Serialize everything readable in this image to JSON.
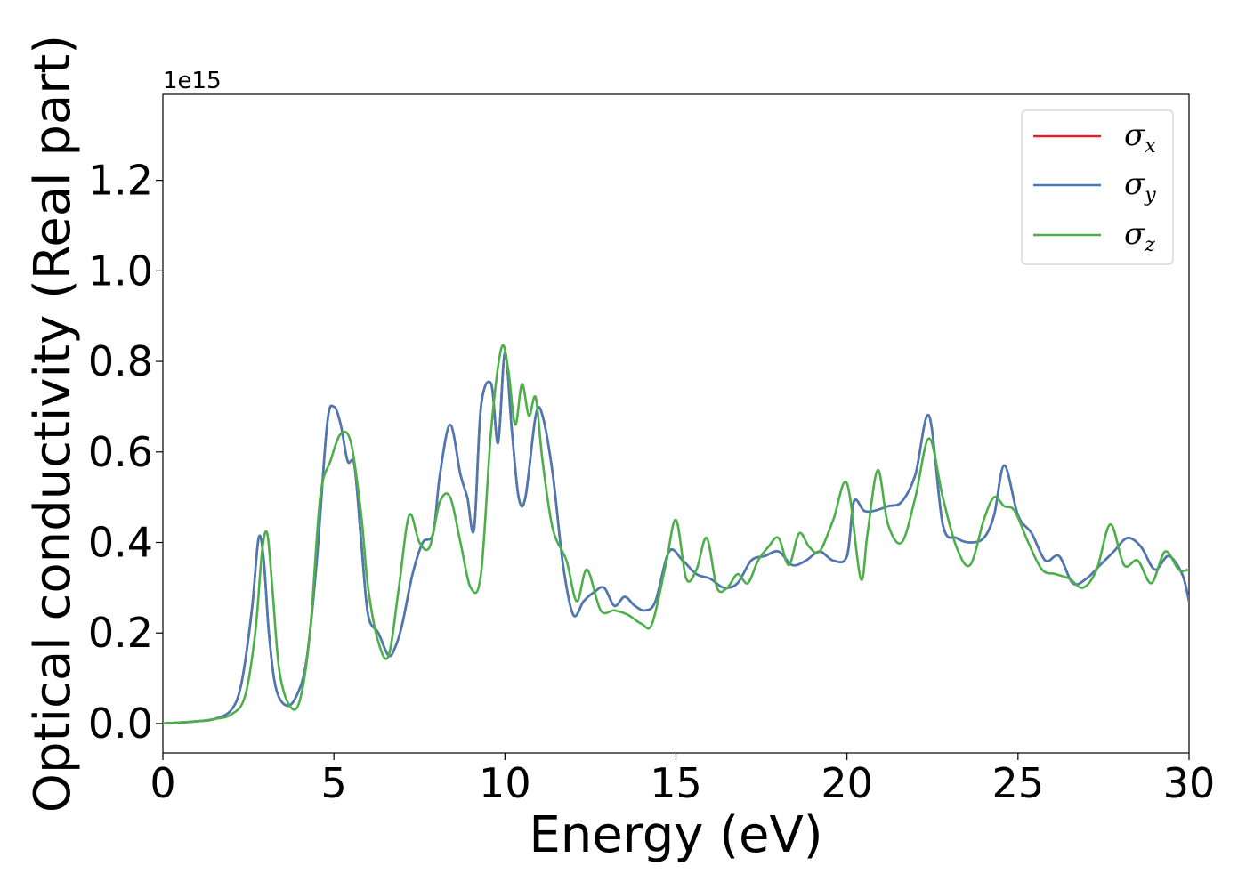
{
  "chart_data": {
    "type": "line",
    "title": "",
    "xlabel": "Energy (eV)",
    "ylabel": "Optical conductivity (Real part)",
    "y_offset_label": "1e15",
    "xlim": [
      0,
      30
    ],
    "ylim": [
      -0.065,
      1.39
    ],
    "x_ticks": [
      0,
      5,
      10,
      15,
      20,
      25,
      30
    ],
    "x_tick_labels": [
      "0",
      "5",
      "10",
      "15",
      "20",
      "25",
      "30"
    ],
    "y_ticks": [
      0.0,
      0.2,
      0.4,
      0.6,
      0.8,
      1.0,
      1.2
    ],
    "y_tick_labels": [
      "0.0",
      "0.2",
      "0.4",
      "0.6",
      "0.8",
      "1.0",
      "1.2"
    ],
    "grid": false,
    "legend_position": "top-right",
    "legend": [
      {
        "symbol": "σ",
        "subscript": "x",
        "color": "#d62728"
      },
      {
        "symbol": "σ",
        "subscript": "y",
        "color": "#4a7ab5"
      },
      {
        "symbol": "σ",
        "subscript": "z",
        "color": "#4daf4a"
      }
    ],
    "series": [
      {
        "name": "σx",
        "color": "#d62728",
        "x": [
          0,
          1,
          1.5,
          2,
          2.3,
          2.6,
          2.8,
          2.95,
          3.1,
          3.3,
          3.6,
          3.9,
          4.2,
          4.5,
          4.8,
          5.0,
          5.2,
          5.4,
          5.6,
          5.8,
          6.0,
          6.3,
          6.6,
          6.8,
          7.0,
          7.3,
          7.6,
          7.9,
          8.1,
          8.4,
          8.7,
          8.9,
          9.1,
          9.3,
          9.6,
          9.8,
          10.0,
          10.2,
          10.4,
          10.6,
          10.9,
          11.1,
          11.4,
          11.7,
          12.0,
          12.3,
          12.6,
          12.9,
          13.2,
          13.5,
          13.8,
          14.1,
          14.4,
          14.8,
          15.2,
          15.6,
          16.0,
          16.4,
          16.8,
          17.2,
          17.6,
          18.0,
          18.4,
          18.8,
          19.2,
          19.6,
          20.0,
          20.2,
          20.5,
          20.8,
          21.2,
          21.6,
          22.0,
          22.4,
          22.8,
          23.2,
          23.6,
          24.0,
          24.3,
          24.6,
          25.0,
          25.4,
          25.8,
          26.2,
          26.6,
          27.0,
          27.4,
          27.8,
          28.2,
          28.6,
          29.0,
          29.4,
          29.8,
          30.0
        ],
        "y": [
          0.0,
          0.005,
          0.01,
          0.03,
          0.09,
          0.25,
          0.41,
          0.36,
          0.2,
          0.08,
          0.04,
          0.06,
          0.14,
          0.36,
          0.66,
          0.7,
          0.66,
          0.58,
          0.57,
          0.4,
          0.24,
          0.2,
          0.15,
          0.17,
          0.22,
          0.33,
          0.4,
          0.42,
          0.55,
          0.66,
          0.55,
          0.5,
          0.43,
          0.7,
          0.75,
          0.62,
          0.82,
          0.65,
          0.5,
          0.5,
          0.68,
          0.68,
          0.55,
          0.35,
          0.24,
          0.27,
          0.29,
          0.3,
          0.26,
          0.28,
          0.26,
          0.25,
          0.27,
          0.38,
          0.36,
          0.33,
          0.32,
          0.3,
          0.31,
          0.36,
          0.37,
          0.38,
          0.35,
          0.36,
          0.38,
          0.36,
          0.37,
          0.49,
          0.47,
          0.47,
          0.48,
          0.49,
          0.55,
          0.68,
          0.44,
          0.41,
          0.4,
          0.41,
          0.46,
          0.57,
          0.46,
          0.42,
          0.36,
          0.37,
          0.31,
          0.32,
          0.35,
          0.38,
          0.41,
          0.39,
          0.34,
          0.37,
          0.33,
          0.27
        ]
      },
      {
        "name": "σy",
        "color": "#4a7ab5",
        "x": [
          0,
          1,
          1.5,
          2,
          2.3,
          2.6,
          2.8,
          2.95,
          3.1,
          3.3,
          3.6,
          3.9,
          4.2,
          4.5,
          4.8,
          5.0,
          5.2,
          5.4,
          5.6,
          5.8,
          6.0,
          6.3,
          6.6,
          6.8,
          7.0,
          7.3,
          7.6,
          7.9,
          8.1,
          8.4,
          8.7,
          8.9,
          9.1,
          9.3,
          9.6,
          9.8,
          10.0,
          10.2,
          10.4,
          10.6,
          10.9,
          11.1,
          11.4,
          11.7,
          12.0,
          12.3,
          12.6,
          12.9,
          13.2,
          13.5,
          13.8,
          14.1,
          14.4,
          14.8,
          15.2,
          15.6,
          16.0,
          16.4,
          16.8,
          17.2,
          17.6,
          18.0,
          18.4,
          18.8,
          19.2,
          19.6,
          20.0,
          20.2,
          20.5,
          20.8,
          21.2,
          21.6,
          22.0,
          22.4,
          22.8,
          23.2,
          23.6,
          24.0,
          24.3,
          24.6,
          25.0,
          25.4,
          25.8,
          26.2,
          26.6,
          27.0,
          27.4,
          27.8,
          28.2,
          28.6,
          29.0,
          29.4,
          29.8,
          30.0
        ],
        "y": [
          0.0,
          0.005,
          0.01,
          0.03,
          0.09,
          0.25,
          0.41,
          0.36,
          0.2,
          0.08,
          0.04,
          0.06,
          0.14,
          0.36,
          0.66,
          0.7,
          0.66,
          0.58,
          0.57,
          0.4,
          0.24,
          0.2,
          0.15,
          0.17,
          0.22,
          0.33,
          0.4,
          0.42,
          0.55,
          0.66,
          0.55,
          0.5,
          0.43,
          0.7,
          0.75,
          0.62,
          0.82,
          0.65,
          0.5,
          0.5,
          0.68,
          0.68,
          0.55,
          0.35,
          0.24,
          0.27,
          0.29,
          0.3,
          0.26,
          0.28,
          0.26,
          0.25,
          0.27,
          0.38,
          0.36,
          0.33,
          0.32,
          0.3,
          0.31,
          0.36,
          0.37,
          0.38,
          0.35,
          0.36,
          0.38,
          0.36,
          0.37,
          0.49,
          0.47,
          0.47,
          0.48,
          0.49,
          0.55,
          0.68,
          0.44,
          0.41,
          0.4,
          0.41,
          0.46,
          0.57,
          0.46,
          0.42,
          0.36,
          0.37,
          0.31,
          0.32,
          0.35,
          0.38,
          0.41,
          0.39,
          0.34,
          0.37,
          0.33,
          0.27
        ]
      },
      {
        "name": "σz",
        "color": "#4daf4a",
        "x": [
          0,
          1,
          1.5,
          2,
          2.4,
          2.7,
          2.9,
          3.05,
          3.2,
          3.4,
          3.7,
          4.0,
          4.3,
          4.6,
          4.9,
          5.2,
          5.5,
          5.8,
          6.0,
          6.3,
          6.6,
          6.9,
          7.2,
          7.5,
          7.8,
          8.1,
          8.4,
          8.7,
          9.0,
          9.3,
          9.6,
          9.9,
          10.1,
          10.3,
          10.5,
          10.7,
          10.9,
          11.1,
          11.4,
          11.8,
          12.1,
          12.4,
          12.8,
          13.2,
          13.6,
          14.0,
          14.3,
          14.7,
          15.0,
          15.3,
          15.6,
          15.9,
          16.2,
          16.5,
          16.8,
          17.1,
          17.4,
          17.7,
          18.0,
          18.3,
          18.6,
          18.9,
          19.2,
          19.6,
          20.0,
          20.4,
          20.6,
          20.9,
          21.2,
          21.6,
          22.0,
          22.4,
          22.8,
          23.2,
          23.6,
          24.0,
          24.3,
          24.6,
          24.9,
          25.3,
          25.7,
          26.1,
          26.5,
          26.9,
          27.3,
          27.7,
          28.1,
          28.5,
          28.9,
          29.3,
          29.7,
          30.0
        ],
        "y": [
          0.0,
          0.005,
          0.01,
          0.02,
          0.06,
          0.2,
          0.38,
          0.42,
          0.3,
          0.12,
          0.04,
          0.05,
          0.2,
          0.5,
          0.58,
          0.64,
          0.62,
          0.46,
          0.3,
          0.18,
          0.15,
          0.3,
          0.46,
          0.4,
          0.39,
          0.49,
          0.5,
          0.4,
          0.3,
          0.33,
          0.65,
          0.83,
          0.78,
          0.66,
          0.75,
          0.68,
          0.72,
          0.58,
          0.43,
          0.36,
          0.27,
          0.34,
          0.25,
          0.25,
          0.24,
          0.22,
          0.22,
          0.35,
          0.45,
          0.32,
          0.34,
          0.41,
          0.3,
          0.3,
          0.33,
          0.31,
          0.36,
          0.39,
          0.41,
          0.35,
          0.42,
          0.39,
          0.38,
          0.45,
          0.53,
          0.32,
          0.42,
          0.56,
          0.44,
          0.4,
          0.5,
          0.63,
          0.5,
          0.39,
          0.35,
          0.45,
          0.5,
          0.48,
          0.47,
          0.4,
          0.34,
          0.33,
          0.32,
          0.3,
          0.34,
          0.44,
          0.35,
          0.36,
          0.31,
          0.38,
          0.34,
          0.34
        ]
      }
    ]
  }
}
